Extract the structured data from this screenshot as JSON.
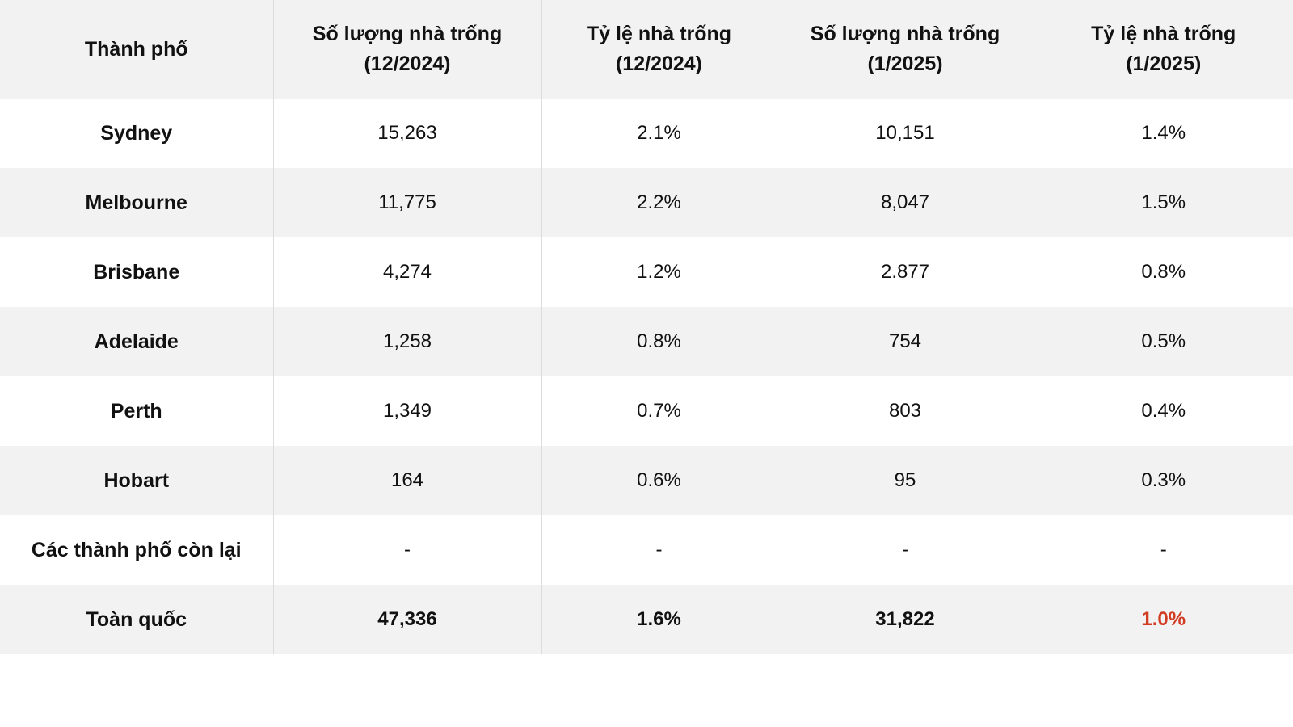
{
  "table": {
    "headers": [
      [
        "Thành phố"
      ],
      [
        "Số lượng nhà trống",
        "(12/2024)"
      ],
      [
        "Tỷ lệ nhà trống",
        "(12/2024)"
      ],
      [
        "Số lượng nhà trống",
        "(1/2025)"
      ],
      [
        "Tỷ lệ nhà trống",
        "(1/2025)"
      ]
    ],
    "rows": [
      [
        "Sydney",
        "15,263",
        "2.1%",
        "10,151",
        "1.4%"
      ],
      [
        "Melbourne",
        "11,775",
        "2.2%",
        "8,047",
        "1.5%"
      ],
      [
        "Brisbane",
        "4,274",
        "1.2%",
        "2.877",
        "0.8%"
      ],
      [
        "Adelaide",
        "1,258",
        "0.8%",
        "754",
        "0.5%"
      ],
      [
        "Perth",
        "1,349",
        "0.7%",
        "803",
        "0.4%"
      ],
      [
        "Hobart",
        "164",
        "0.6%",
        "95",
        "0.3%"
      ],
      [
        "Các thành phố còn lại",
        "-",
        "-",
        "-",
        "-"
      ],
      [
        "Toàn quốc",
        "47,336",
        "1.6%",
        "31,822",
        "1.0%"
      ]
    ],
    "highlight_color": "#d23c22"
  }
}
